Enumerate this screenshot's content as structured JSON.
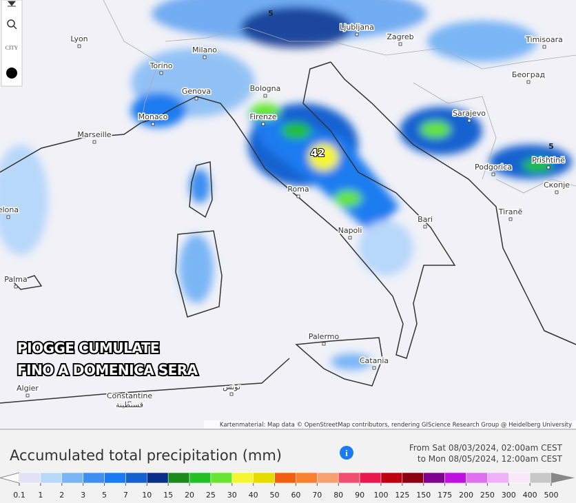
{
  "map": {
    "cities": [
      "Lyon",
      "Milano",
      "Torino",
      "Genova",
      "Monaco",
      "Marseille",
      "Bologna",
      "Firenze",
      "Roma",
      "Napoli",
      "Bari",
      "Palermo",
      "Catania",
      "Ljubljana",
      "Zagreb",
      "Timisoara",
      "Београд",
      "Sarajevo",
      "Podgorica",
      "Prishtinë",
      "Скопје",
      "Tiranë",
      "Palma",
      "elona",
      "Algier",
      "Constantine",
      "قسنطينة",
      "تونس"
    ],
    "value_labels": [
      5,
      5,
      42
    ]
  },
  "controls": {
    "city": "CITY"
  },
  "overlay": [
    "PIOGGE CUMULATE",
    "FINO A DOMENICA SERA"
  ],
  "attribution": "Kartenmaterial: Map data © OpenStreetMap contributors, rendering GIScience Research Group @ Heidelberg University",
  "legend": {
    "title": "Accumulated total precipitation (mm)",
    "period": [
      "From Sat 08/03/2024, 02:00am CEST",
      "to Mon 08/05/2024, 12:00am CEST"
    ],
    "ticks": [
      0.1,
      1,
      2,
      3,
      5,
      7,
      10,
      15,
      20,
      25,
      30,
      40,
      50,
      60,
      70,
      80,
      90,
      100,
      125,
      150,
      175,
      200,
      250,
      300,
      400,
      500
    ],
    "colors": [
      "#e2e2f6",
      "#b8d8fa",
      "#7ab6f5",
      "#3d8ff0",
      "#1a7cf0",
      "#1462d0",
      "#0a2f8a",
      "#1a8a1a",
      "#22c022",
      "#66e633",
      "#f5f533",
      "#e6dc00",
      "#f06010",
      "#f88030",
      "#f8a070",
      "#f05070",
      "#e8184c",
      "#c00010",
      "#8a0010",
      "#800090",
      "#c010e0",
      "#e070f0",
      "#f0b0f8",
      "#f8e8f8",
      "#c8c8c8"
    ]
  }
}
